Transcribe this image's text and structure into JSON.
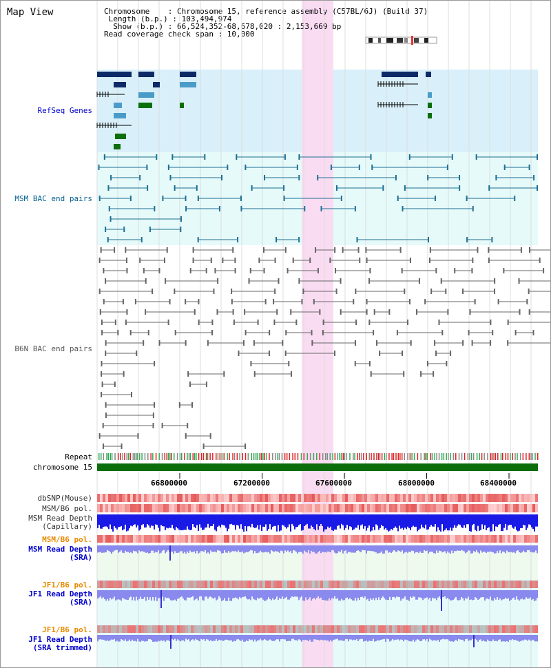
{
  "header": {
    "title": "Map View",
    "info_lines": [
      "Chromosome    : Chromosome 15, reference assembly (C57BL/6J) (Build 37)",
      " Length (b.p.) : 103,494,974",
      "  Show (b.p.) : 66,524,352-68,678,020 : 2,153,669 bp",
      "Read coverage check span : 10,000"
    ]
  },
  "tracks": {
    "refseq": {
      "label": "RefSeq Genes",
      "color": "#0000cc"
    },
    "msm_bac": {
      "label": "MSM BAC end pairs",
      "color": "#005f8f"
    },
    "b6n_bac": {
      "label": "B6N BAC end pairs",
      "color": "#555555"
    },
    "repeat": {
      "label": "Repeat"
    },
    "chromosome": {
      "label": "chromosome 15"
    },
    "dbsnp": {
      "label": "dbSNP(Mouse)"
    },
    "msm_b6_pol_1": {
      "label": "MSM/B6 pol."
    },
    "msm_read_depth_cap": {
      "label1": "MSM Read Depth",
      "label2": "(Capillary)"
    },
    "msm_b6_pol_2": {
      "label": "MSM/B6 pol.",
      "color": "#e88a00"
    },
    "msm_read_depth_sra": {
      "label1": "MSM Read Depth",
      "label2": "(SRA)",
      "color": "#0000cc"
    },
    "jf1_b6_pol_1": {
      "label": "JF1/B6 pol.",
      "color": "#e88a00"
    },
    "jf1_read_depth_sra": {
      "label1": "JF1 Read Depth",
      "label2": "(SRA)",
      "color": "#0000cc"
    },
    "jf1_b6_pol_2": {
      "label": "JF1/B6 pol.",
      "color": "#e88a00"
    },
    "jf1_read_depth_trim": {
      "label1": "JF1 Read Depth",
      "label2": "(SRA trimmed)",
      "color": "#0000cc"
    }
  },
  "axis": {
    "ticks": [
      {
        "label": "66800000",
        "value": 66800000
      },
      {
        "label": "67200000",
        "value": 67200000
      },
      {
        "label": "67600000",
        "value": 67600000
      },
      {
        "label": "68000000",
        "value": 68000000
      },
      {
        "label": "68400000",
        "value": 68400000
      }
    ]
  },
  "colors": {
    "refseq_band": "#d9f0fa",
    "msm_band": "#e6fafa",
    "highlight": "#f9dcf2",
    "gene_dark": "#0b2a66",
    "gene_light": "#4a9cc8",
    "gene_green": "#0a6e0a",
    "msm_line": "#1d6f93",
    "b6n_line": "#666666",
    "chrom_bar": "#0b6e0b",
    "depth_blue": "#1a1ae6",
    "depth_light": "#8a8aee"
  }
}
